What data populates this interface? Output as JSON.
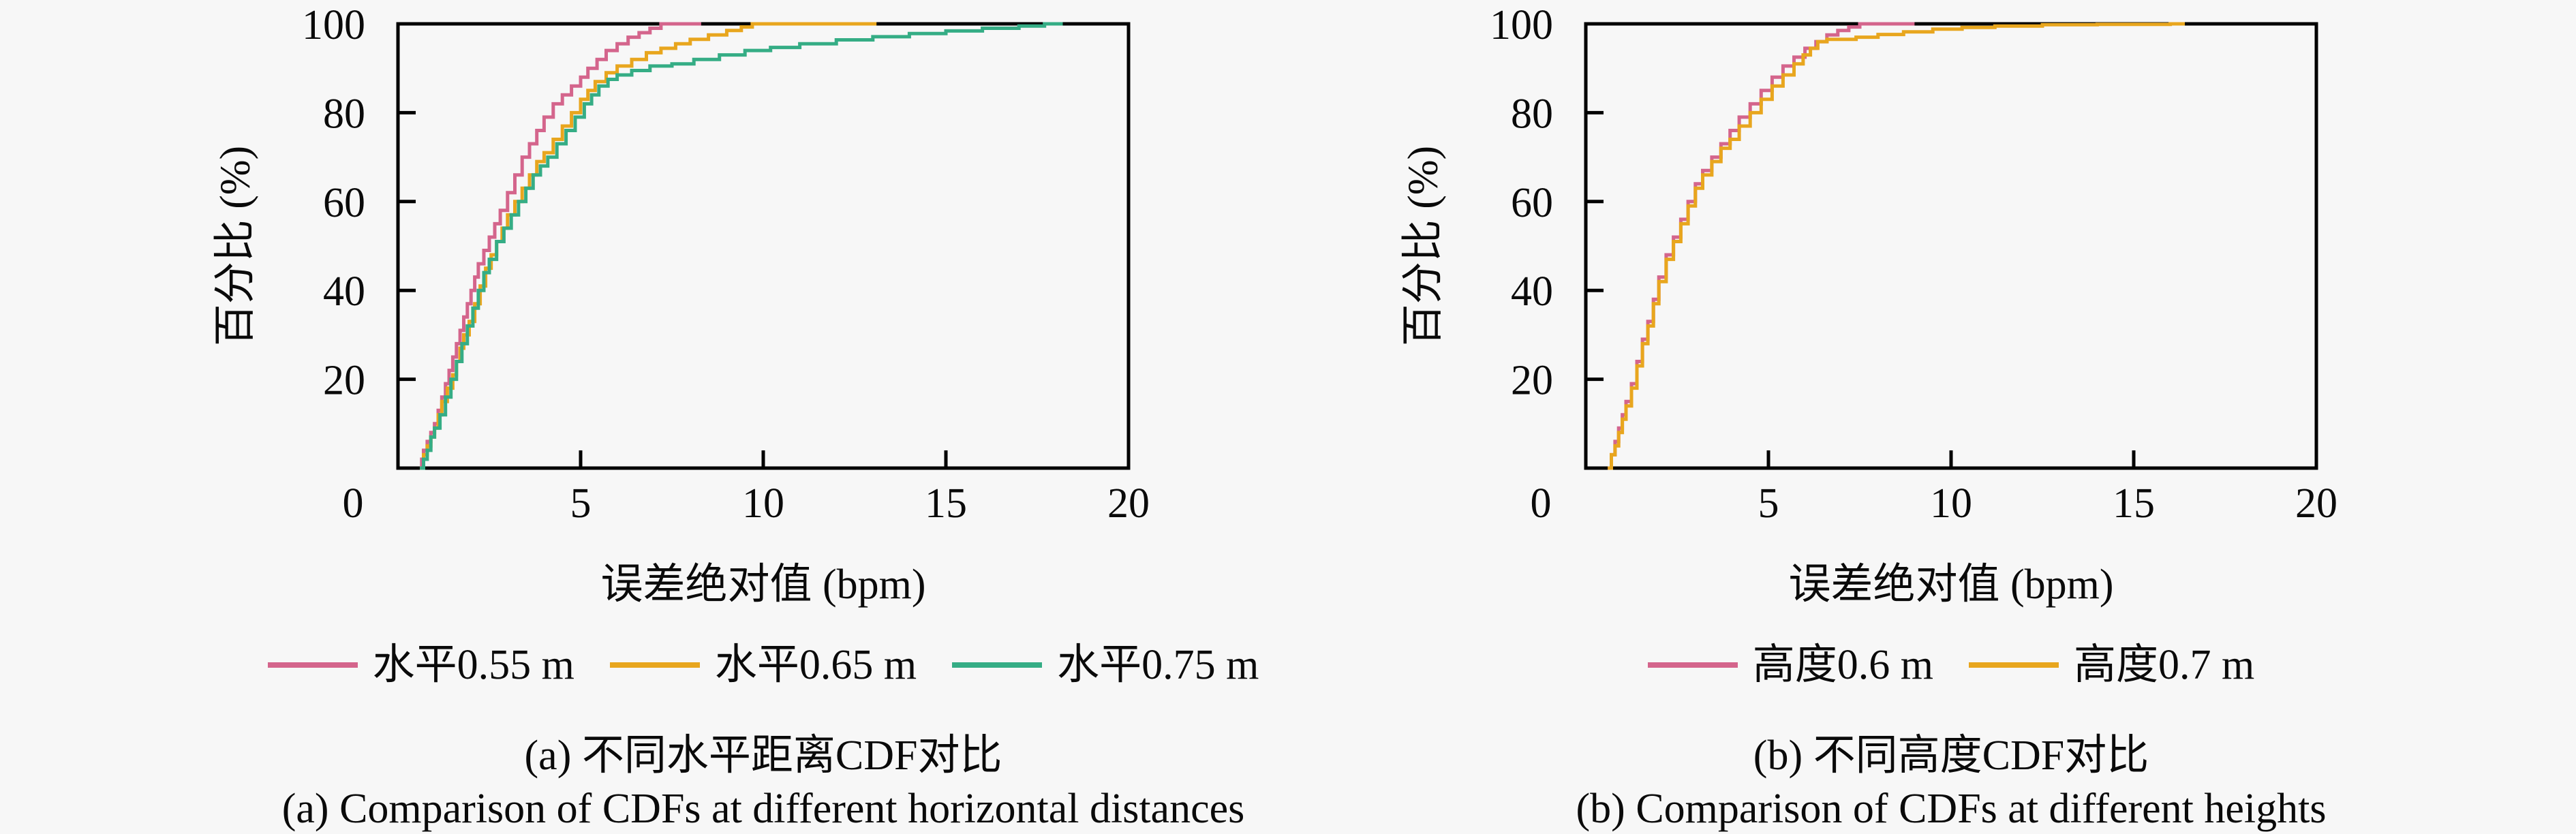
{
  "page": {
    "background": "#f7f7f7",
    "axis_color": "#000000",
    "text_color": "#0a0a0a"
  },
  "chart_data": [
    {
      "type": "line",
      "subtype": "cdf-step",
      "xlabel": "误差绝对值 (bpm)",
      "ylabel": "百分比 (%)",
      "xlim": [
        0,
        20
      ],
      "ylim": [
        0,
        100
      ],
      "xticks": [
        0,
        5,
        10,
        15,
        20
      ],
      "yticks": [
        20,
        40,
        60,
        80,
        100
      ],
      "grid": false,
      "legend_position": "below",
      "caption_zh": "(a) 不同水平距离CDF对比",
      "caption_en": "(a) Comparison of CDFs at different horizontal distances",
      "series": [
        {
          "name": "水平0.55 m",
          "color": "#d4658c",
          "end_x": 8.3,
          "points": [
            [
              0.6,
              0
            ],
            [
              0.65,
              2
            ],
            [
              0.7,
              4
            ],
            [
              0.8,
              6
            ],
            [
              0.9,
              8
            ],
            [
              1.0,
              10
            ],
            [
              1.1,
              13
            ],
            [
              1.2,
              16
            ],
            [
              1.3,
              19
            ],
            [
              1.4,
              22
            ],
            [
              1.5,
              25
            ],
            [
              1.6,
              28
            ],
            [
              1.7,
              31
            ],
            [
              1.8,
              34
            ],
            [
              1.9,
              37
            ],
            [
              2.0,
              40
            ],
            [
              2.1,
              43
            ],
            [
              2.2,
              46
            ],
            [
              2.35,
              49
            ],
            [
              2.5,
              52
            ],
            [
              2.65,
              55
            ],
            [
              2.8,
              58
            ],
            [
              3.0,
              62
            ],
            [
              3.2,
              66
            ],
            [
              3.4,
              70
            ],
            [
              3.6,
              73
            ],
            [
              3.8,
              76
            ],
            [
              4.0,
              79
            ],
            [
              4.25,
              82
            ],
            [
              4.5,
              84
            ],
            [
              4.75,
              86
            ],
            [
              5.0,
              88
            ],
            [
              5.2,
              90
            ],
            [
              5.45,
              92
            ],
            [
              5.7,
              94
            ],
            [
              6.0,
              95.5
            ],
            [
              6.3,
              97
            ],
            [
              6.6,
              98
            ],
            [
              6.9,
              99
            ],
            [
              7.2,
              100
            ]
          ]
        },
        {
          "name": "水平0.65 m",
          "color": "#e8a61e",
          "end_x": 13.1,
          "points": [
            [
              0.6,
              0
            ],
            [
              0.7,
              3
            ],
            [
              0.8,
              5
            ],
            [
              0.9,
              7
            ],
            [
              1.0,
              9
            ],
            [
              1.1,
              12
            ],
            [
              1.2,
              15
            ],
            [
              1.35,
              18
            ],
            [
              1.5,
              21
            ],
            [
              1.6,
              24
            ],
            [
              1.7,
              27
            ],
            [
              1.8,
              30
            ],
            [
              1.95,
              33
            ],
            [
              2.1,
              37
            ],
            [
              2.25,
              41
            ],
            [
              2.4,
              45
            ],
            [
              2.55,
              48
            ],
            [
              2.7,
              51
            ],
            [
              2.85,
              54
            ],
            [
              3.0,
              57
            ],
            [
              3.2,
              60
            ],
            [
              3.4,
              63
            ],
            [
              3.6,
              66
            ],
            [
              3.8,
              69
            ],
            [
              4.0,
              71
            ],
            [
              4.25,
              74
            ],
            [
              4.5,
              77
            ],
            [
              4.75,
              80
            ],
            [
              5.0,
              83
            ],
            [
              5.2,
              85
            ],
            [
              5.4,
              87
            ],
            [
              5.7,
              89
            ],
            [
              6.0,
              90.5
            ],
            [
              6.4,
              92
            ],
            [
              6.8,
              93.5
            ],
            [
              7.2,
              94.5
            ],
            [
              7.6,
              95.5
            ],
            [
              8.0,
              96.5
            ],
            [
              8.5,
              97.5
            ],
            [
              9.0,
              98.5
            ],
            [
              9.4,
              99.3
            ],
            [
              9.7,
              100
            ]
          ]
        },
        {
          "name": "水平0.75 m",
          "color": "#35ad85",
          "end_x": 18.2,
          "points": [
            [
              0.6,
              0
            ],
            [
              0.7,
              2
            ],
            [
              0.8,
              4
            ],
            [
              0.9,
              7
            ],
            [
              1.0,
              9
            ],
            [
              1.15,
              12
            ],
            [
              1.3,
              16
            ],
            [
              1.45,
              20
            ],
            [
              1.6,
              24
            ],
            [
              1.75,
              28
            ],
            [
              1.9,
              32
            ],
            [
              2.05,
              36
            ],
            [
              2.2,
              40
            ],
            [
              2.35,
              44
            ],
            [
              2.5,
              47
            ],
            [
              2.7,
              51
            ],
            [
              2.9,
              54
            ],
            [
              3.1,
              57
            ],
            [
              3.3,
              60
            ],
            [
              3.5,
              63
            ],
            [
              3.7,
              66
            ],
            [
              3.9,
              68
            ],
            [
              4.1,
              70
            ],
            [
              4.35,
              73
            ],
            [
              4.6,
              76
            ],
            [
              4.85,
              79
            ],
            [
              5.1,
              82
            ],
            [
              5.3,
              84
            ],
            [
              5.5,
              86
            ],
            [
              5.75,
              87.5
            ],
            [
              6.0,
              88.5
            ],
            [
              6.4,
              89.5
            ],
            [
              6.9,
              90.5
            ],
            [
              7.5,
              91
            ],
            [
              8.1,
              92
            ],
            [
              8.8,
              93
            ],
            [
              9.5,
              94
            ],
            [
              10.2,
              94.7
            ],
            [
              11.0,
              95.5
            ],
            [
              12.0,
              96.4
            ],
            [
              13.0,
              97.1
            ],
            [
              14.0,
              97.8
            ],
            [
              15.0,
              98.4
            ],
            [
              16.0,
              99
            ],
            [
              17.0,
              99.5
            ],
            [
              17.7,
              100
            ]
          ]
        }
      ]
    },
    {
      "type": "line",
      "subtype": "cdf-step",
      "xlabel": "误差绝对值 (bpm)",
      "ylabel": "百分比 (%)",
      "xlim": [
        0,
        20
      ],
      "ylim": [
        0,
        100
      ],
      "xticks": [
        0,
        5,
        10,
        15,
        20
      ],
      "yticks": [
        20,
        40,
        60,
        80,
        100
      ],
      "grid": false,
      "legend_position": "below",
      "caption_zh": "(b) 不同高度CDF对比",
      "caption_en": "(b) Comparison of CDFs at different heights",
      "series": [
        {
          "name": "高度0.6 m",
          "color": "#d4658c",
          "end_x": 9.0,
          "points": [
            [
              0.6,
              0
            ],
            [
              0.7,
              3
            ],
            [
              0.8,
              6
            ],
            [
              0.9,
              9
            ],
            [
              1.0,
              12
            ],
            [
              1.1,
              15
            ],
            [
              1.25,
              19
            ],
            [
              1.4,
              24
            ],
            [
              1.55,
              29
            ],
            [
              1.7,
              33
            ],
            [
              1.85,
              38
            ],
            [
              2.0,
              43
            ],
            [
              2.2,
              48
            ],
            [
              2.4,
              52
            ],
            [
              2.6,
              56
            ],
            [
              2.8,
              60
            ],
            [
              3.0,
              64
            ],
            [
              3.2,
              67
            ],
            [
              3.45,
              70
            ],
            [
              3.7,
              73
            ],
            [
              3.95,
              76
            ],
            [
              4.2,
              79
            ],
            [
              4.5,
              82
            ],
            [
              4.8,
              85
            ],
            [
              5.1,
              88
            ],
            [
              5.4,
              90.5
            ],
            [
              5.7,
              92.5
            ],
            [
              6.0,
              94.5
            ],
            [
              6.3,
              96
            ],
            [
              6.6,
              97.5
            ],
            [
              6.9,
              98.5
            ],
            [
              7.2,
              99.3
            ],
            [
              7.5,
              100
            ]
          ]
        },
        {
          "name": "高度0.7 m",
          "color": "#e8a61e",
          "end_x": 16.4,
          "points": [
            [
              0.6,
              0
            ],
            [
              0.7,
              3
            ],
            [
              0.8,
              5
            ],
            [
              0.9,
              8
            ],
            [
              1.0,
              11
            ],
            [
              1.1,
              14
            ],
            [
              1.25,
              18
            ],
            [
              1.4,
              23
            ],
            [
              1.55,
              28
            ],
            [
              1.7,
              32
            ],
            [
              1.85,
              37
            ],
            [
              2.0,
              42
            ],
            [
              2.2,
              47
            ],
            [
              2.4,
              51
            ],
            [
              2.6,
              55
            ],
            [
              2.8,
              59
            ],
            [
              3.0,
              63
            ],
            [
              3.2,
              66
            ],
            [
              3.45,
              69
            ],
            [
              3.7,
              72
            ],
            [
              3.95,
              74
            ],
            [
              4.2,
              77
            ],
            [
              4.5,
              80
            ],
            [
              4.8,
              83
            ],
            [
              5.1,
              86
            ],
            [
              5.4,
              88.5
            ],
            [
              5.7,
              91
            ],
            [
              5.95,
              93
            ],
            [
              6.15,
              94.5
            ],
            [
              6.35,
              96
            ],
            [
              6.6,
              96.5
            ],
            [
              7.4,
              97
            ],
            [
              8.0,
              97.6
            ],
            [
              8.7,
              98.2
            ],
            [
              9.5,
              98.8
            ],
            [
              10.3,
              99.2
            ],
            [
              11.2,
              99.5
            ],
            [
              12.5,
              99.8
            ],
            [
              14.0,
              99.9
            ],
            [
              16.0,
              100
            ]
          ]
        }
      ]
    }
  ]
}
